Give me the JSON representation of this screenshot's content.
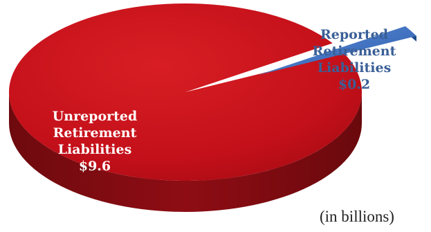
{
  "chart_data": {
    "type": "pie",
    "style": "3d-exploded",
    "slices": [
      {
        "name": "Unreported Retirement Liabilities",
        "label_lines": [
          "Unreported",
          "Retirement",
          "Liabilities",
          "$9.6"
        ],
        "value": 9.6,
        "display_value": "$9.6",
        "color": "#c8101a",
        "side_color": "#7a0b10"
      },
      {
        "name": "Reported Retirement Liabilities",
        "label_lines": [
          "Reported",
          "Retirement",
          "Liabilities",
          "$0.2"
        ],
        "value": 0.2,
        "display_value": "$0.2",
        "color": "#3f74c8",
        "side_color": "#1f4a8c"
      }
    ],
    "units_note": "(in billions)",
    "legend": "none"
  }
}
